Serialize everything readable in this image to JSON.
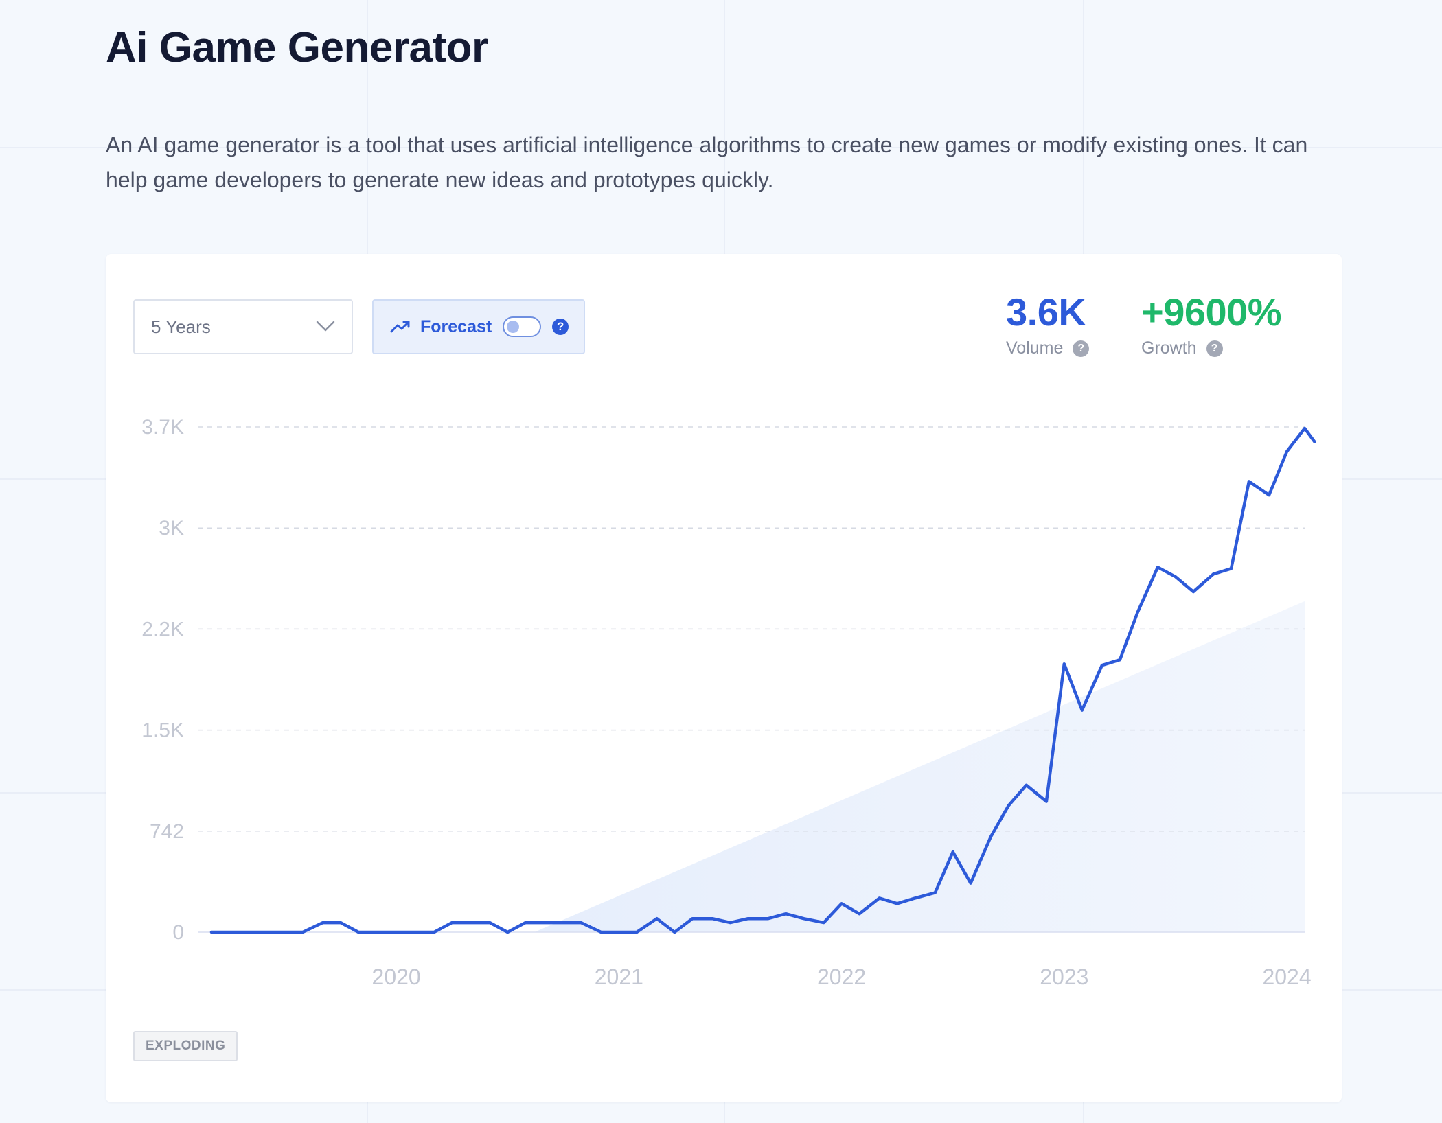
{
  "header": {
    "title": "Ai Game Generator",
    "description": "An AI game generator is a tool that uses artificial intelligence algorithms to create new games or modify existing ones. It can help game developers to generate new ideas and prototypes quickly."
  },
  "controls": {
    "period_value": "5 Years",
    "forecast_label": "Forecast",
    "forecast_enabled": false,
    "help_glyph": "?"
  },
  "stats": {
    "volume_value": "3.6K",
    "volume_label": "Volume",
    "growth_value": "+9600%",
    "growth_label": "Growth"
  },
  "status_badge": "EXPLODING",
  "colors": {
    "line": "#2d5ad9",
    "accent_blue": "#2d5ad9",
    "growth_green": "#1fb86a",
    "trend_fill": "#e6eefc"
  },
  "icons": [
    "chevron-down-icon",
    "trend-up-icon",
    "help-icon"
  ],
  "chart_data": {
    "type": "line",
    "title": "",
    "xlabel": "",
    "ylabel": "",
    "y_ticks": [
      {
        "value": 0,
        "label": "0"
      },
      {
        "value": 742,
        "label": "742"
      },
      {
        "value": 1484,
        "label": "1.5K"
      },
      {
        "value": 2226,
        "label": "2.2K"
      },
      {
        "value": 2968,
        "label": "3K"
      },
      {
        "value": 3710,
        "label": "3.7K"
      }
    ],
    "ylim": [
      0,
      3710
    ],
    "x_ticks": [
      {
        "value": 2020.0,
        "label": "2020"
      },
      {
        "value": 2021.0,
        "label": "2021"
      },
      {
        "value": 2022.0,
        "label": "2022"
      },
      {
        "value": 2023.0,
        "label": "2023"
      },
      {
        "value": 2024.0,
        "label": "2024"
      }
    ],
    "xlim": [
      2019.17,
      2024.08
    ],
    "grid": true,
    "trend_fill": {
      "x": [
        2020.62,
        2024.08
      ],
      "y": [
        0,
        2430
      ]
    },
    "series": [
      {
        "points": [
          [
            2019.17,
            0
          ],
          [
            2019.25,
            0
          ],
          [
            2019.33,
            0
          ],
          [
            2019.42,
            0
          ],
          [
            2019.5,
            0
          ],
          [
            2019.58,
            0
          ],
          [
            2019.67,
            70
          ],
          [
            2019.75,
            70
          ],
          [
            2019.83,
            0
          ],
          [
            2019.92,
            0
          ],
          [
            2020.0,
            0
          ],
          [
            2020.08,
            0
          ],
          [
            2020.17,
            0
          ],
          [
            2020.25,
            70
          ],
          [
            2020.33,
            70
          ],
          [
            2020.42,
            70
          ],
          [
            2020.5,
            0
          ],
          [
            2020.58,
            70
          ],
          [
            2020.67,
            70
          ],
          [
            2020.75,
            70
          ],
          [
            2020.83,
            70
          ],
          [
            2020.92,
            0
          ],
          [
            2021.0,
            0
          ],
          [
            2021.08,
            0
          ],
          [
            2021.17,
            100
          ],
          [
            2021.25,
            0
          ],
          [
            2021.33,
            100
          ],
          [
            2021.42,
            100
          ],
          [
            2021.5,
            70
          ],
          [
            2021.58,
            100
          ],
          [
            2021.67,
            100
          ],
          [
            2021.75,
            135
          ],
          [
            2021.83,
            100
          ],
          [
            2021.92,
            70
          ],
          [
            2022.0,
            210
          ],
          [
            2022.08,
            135
          ],
          [
            2022.17,
            250
          ],
          [
            2022.25,
            210
          ],
          [
            2022.33,
            250
          ],
          [
            2022.42,
            290
          ],
          [
            2022.5,
            590
          ],
          [
            2022.58,
            360
          ],
          [
            2022.67,
            700
          ],
          [
            2022.75,
            930
          ],
          [
            2022.83,
            1080
          ],
          [
            2022.92,
            960
          ],
          [
            2023.0,
            1970
          ],
          [
            2023.08,
            1630
          ],
          [
            2023.17,
            1960
          ],
          [
            2023.25,
            2000
          ],
          [
            2023.33,
            2350
          ],
          [
            2023.42,
            2680
          ],
          [
            2023.5,
            2610
          ],
          [
            2023.58,
            2500
          ],
          [
            2023.67,
            2630
          ],
          [
            2023.75,
            2670
          ],
          [
            2023.83,
            3310
          ],
          [
            2023.92,
            3210
          ],
          [
            2024.0,
            3530
          ],
          [
            2024.08,
            3700
          ],
          [
            2024.125,
            3600
          ]
        ]
      }
    ]
  }
}
